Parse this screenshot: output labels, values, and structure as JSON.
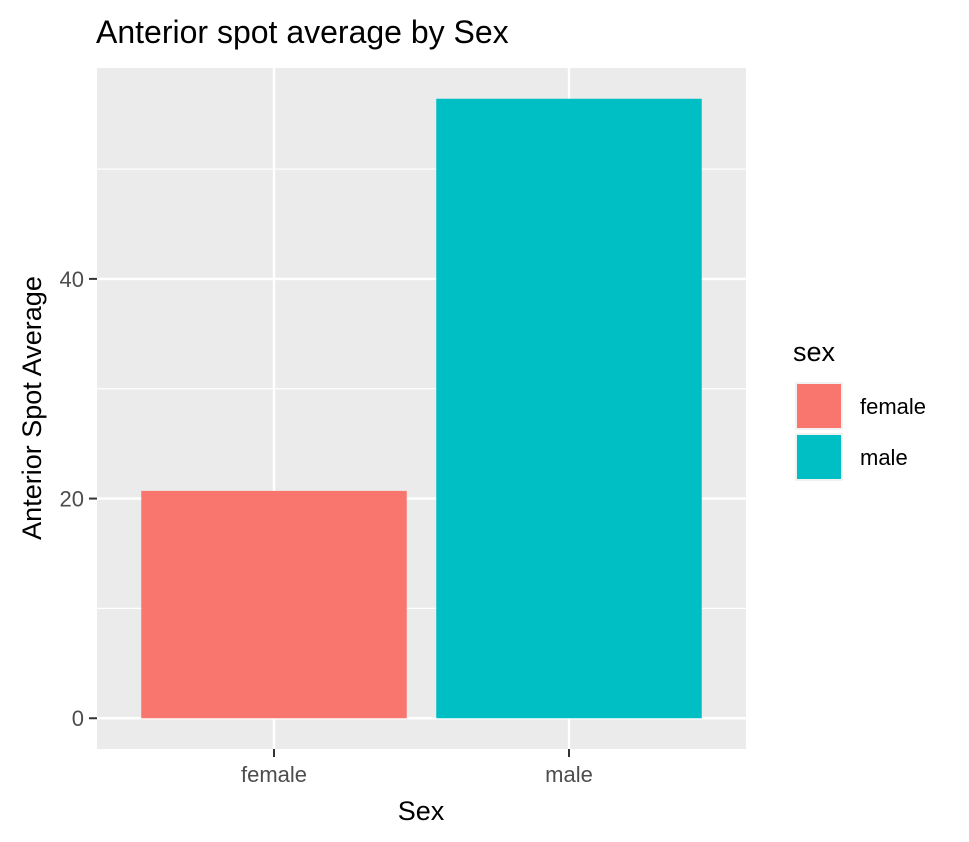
{
  "chart_data": {
    "type": "bar",
    "title": "Anterior spot average by Sex",
    "xlabel": "Sex",
    "ylabel": "Anterior Spot Average",
    "categories": [
      "female",
      "male"
    ],
    "values": [
      20.7,
      56.4
    ],
    "colors": [
      "#F8766D",
      "#00BFC4"
    ],
    "ylim": [
      -2.8,
      59.2
    ],
    "yticks": [
      0,
      20,
      40
    ],
    "yticks_minor": [
      10,
      30,
      50
    ],
    "grid": true,
    "panel_background": "#EBEBEB",
    "legend": {
      "title": "sex",
      "placement": "right",
      "entries": [
        "female",
        "male"
      ]
    }
  }
}
